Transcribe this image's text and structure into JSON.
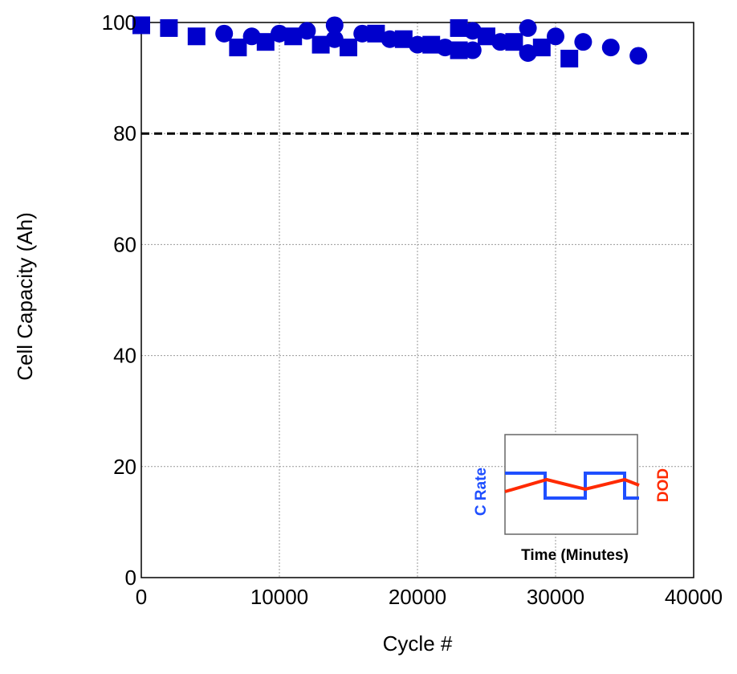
{
  "chart_data": {
    "type": "scatter",
    "xlabel": "Cycle #",
    "ylabel": "Cell Capacity (Ah)",
    "xlim": [
      0,
      40000
    ],
    "ylim": [
      0,
      100
    ],
    "xticks": [
      0,
      10000,
      20000,
      30000,
      40000
    ],
    "yticks": [
      0,
      20,
      40,
      60,
      80,
      100
    ],
    "grid": true,
    "reference_line": {
      "y": 80,
      "style": "dashed"
    },
    "colors": {
      "marker": "#0000cc",
      "c_rate": "#1f4fff",
      "dod": "#ff2a00"
    },
    "series": [
      {
        "marker": "circle",
        "x": [
          6000,
          8000,
          10000,
          12000,
          14000,
          14000,
          16000,
          18000,
          20000,
          22000,
          24000,
          24000,
          26000,
          28000,
          28000,
          30000,
          32000,
          34000,
          36000
        ],
        "y": [
          98,
          97.5,
          98,
          98.5,
          99.5,
          97,
          98,
          97,
          96,
          95.5,
          98.5,
          95,
          96.5,
          99,
          94.5,
          97.5,
          96.5,
          95.5,
          94
        ]
      },
      {
        "marker": "square",
        "x": [
          0,
          2000,
          4000,
          7000,
          9000,
          11000,
          13000,
          15000,
          17000,
          19000,
          21000,
          23000,
          23000,
          25000,
          27000,
          29000,
          31000
        ],
        "y": [
          99.5,
          99,
          97.5,
          95.5,
          96.5,
          97.5,
          96,
          95.5,
          98,
          97,
          96,
          99,
          95,
          97.5,
          96.5,
          95.5,
          93.5
        ]
      }
    ],
    "inset": {
      "xlabel": "Time (Minutes)",
      "left_label": "C Rate",
      "right_label": "DOD"
    }
  }
}
